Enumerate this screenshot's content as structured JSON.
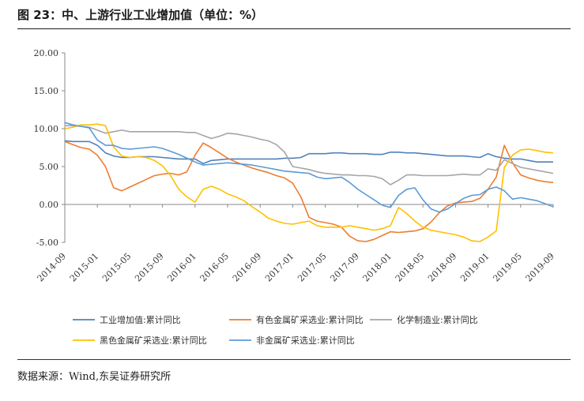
{
  "header": {
    "title": "图 23：中、上游行业工业增加值（单位：%）"
  },
  "footer": {
    "source": "数据来源：Wind,东吴证券研究所"
  },
  "chart_data": {
    "type": "line",
    "title": "",
    "xlabel": "",
    "ylabel": "",
    "ylim": [
      -5,
      20
    ],
    "yticks": [
      "20.00",
      "15.00",
      "10.00",
      "5.00",
      "0.00",
      "-5.00"
    ],
    "xticks": [
      "2014-09",
      "2015-01",
      "2015-05",
      "2015-09",
      "2016-01",
      "2016-05",
      "2016-09",
      "2017-01",
      "2017-05",
      "2017-09",
      "2018-01",
      "2018-05",
      "2018-09",
      "2019-01",
      "2019-05",
      "2019-09"
    ],
    "grid": false,
    "legend_position": "bottom",
    "series": [
      {
        "name": "工业增加值:累计同比",
        "color": "#4f81bd",
        "values": [
          8.4,
          8.3,
          8.3,
          8.3,
          7.8,
          6.8,
          6.4,
          6.2,
          6.2,
          6.3,
          6.3,
          6.3,
          6.2,
          6.1,
          6.0,
          6.0,
          6.0,
          5.4,
          5.8,
          5.9,
          6.0,
          6.0,
          6.0,
          6.0,
          6.0,
          6.0,
          6.0,
          6.1,
          6.1,
          6.2,
          6.7,
          6.7,
          6.7,
          6.8,
          6.8,
          6.7,
          6.7,
          6.7,
          6.6,
          6.6,
          6.9,
          6.9,
          6.8,
          6.8,
          6.7,
          6.6,
          6.5,
          6.4,
          6.4,
          6.4,
          6.3,
          6.2,
          6.7,
          6.3,
          6.1,
          6.0,
          6.0,
          5.8,
          5.6,
          5.6,
          5.6
        ]
      },
      {
        "name": "有色金属矿采选业:累计同比",
        "color": "#ed7d31",
        "values": [
          8.3,
          7.9,
          7.5,
          7.3,
          6.5,
          5.0,
          2.2,
          1.8,
          2.3,
          2.8,
          3.3,
          3.8,
          4.0,
          4.1,
          3.9,
          4.3,
          6.5,
          8.1,
          7.5,
          6.8,
          6.1,
          5.6,
          5.2,
          4.8,
          4.5,
          4.2,
          3.8,
          3.5,
          2.8,
          1.0,
          -1.7,
          -2.2,
          -2.4,
          -2.6,
          -3.0,
          -4.2,
          -4.8,
          -4.9,
          -4.6,
          -4.1,
          -3.6,
          -3.7,
          -3.6,
          -3.5,
          -3.2,
          -2.3,
          -1.1,
          -0.2,
          0.2,
          0.3,
          0.4,
          0.8,
          2.0,
          3.6,
          7.8,
          5.5,
          3.9,
          3.5,
          3.2,
          3.0,
          2.9
        ]
      },
      {
        "name": "化学制造业:累计同比",
        "color": "#a5a5a5",
        "values": [
          10.4,
          10.4,
          10.3,
          10.2,
          9.8,
          9.4,
          9.6,
          9.8,
          9.6,
          9.6,
          9.6,
          9.6,
          9.6,
          9.6,
          9.6,
          9.5,
          9.5,
          9.1,
          8.7,
          9.0,
          9.4,
          9.3,
          9.1,
          8.9,
          8.6,
          8.4,
          7.9,
          6.9,
          5.0,
          4.8,
          4.6,
          4.3,
          4.1,
          4.0,
          3.9,
          3.9,
          3.8,
          3.8,
          3.7,
          3.4,
          2.6,
          3.2,
          3.9,
          3.9,
          3.8,
          3.8,
          3.8,
          3.8,
          3.9,
          4.0,
          3.9,
          3.9,
          4.7,
          4.5,
          5.9,
          5.4,
          4.9,
          4.7,
          4.5,
          4.3,
          4.1
        ]
      },
      {
        "name": "黑色金属矿采选业:累计同比",
        "color": "#ffc000",
        "values": [
          10.0,
          10.2,
          10.5,
          10.5,
          10.6,
          10.4,
          7.6,
          6.4,
          6.2,
          6.3,
          6.2,
          5.8,
          5.1,
          3.8,
          2.0,
          1.0,
          0.3,
          2.0,
          2.4,
          2.0,
          1.4,
          1.0,
          0.5,
          -0.3,
          -1.0,
          -1.8,
          -2.2,
          -2.5,
          -2.6,
          -2.4,
          -2.2,
          -2.8,
          -3.0,
          -3.0,
          -3.0,
          -2.8,
          -3.0,
          -3.2,
          -3.4,
          -3.2,
          -2.8,
          -0.4,
          -1.2,
          -2.2,
          -3.0,
          -3.4,
          -3.6,
          -3.8,
          -4.0,
          -4.3,
          -4.8,
          -4.9,
          -4.3,
          -3.5,
          4.9,
          6.5,
          7.2,
          7.3,
          7.1,
          6.9,
          6.8
        ]
      },
      {
        "name": "非金属矿采选业:累计同比",
        "color": "#5b9bd5",
        "values": [
          10.8,
          10.5,
          10.3,
          10.1,
          8.5,
          7.8,
          7.8,
          7.4,
          7.3,
          7.4,
          7.5,
          7.6,
          7.4,
          7.0,
          6.6,
          6.1,
          5.6,
          5.2,
          5.3,
          5.4,
          5.5,
          5.4,
          5.3,
          5.2,
          5.0,
          4.8,
          4.6,
          4.4,
          4.3,
          4.2,
          4.1,
          3.6,
          3.4,
          3.5,
          3.6,
          2.9,
          2.0,
          1.3,
          0.6,
          -0.1,
          -0.4,
          1.2,
          2.0,
          2.2,
          0.6,
          -0.6,
          -1.0,
          -0.6,
          0.1,
          0.8,
          1.2,
          1.3,
          2.0,
          2.3,
          1.8,
          0.7,
          0.9,
          0.7,
          0.5,
          0.1,
          -0.3
        ]
      }
    ]
  }
}
